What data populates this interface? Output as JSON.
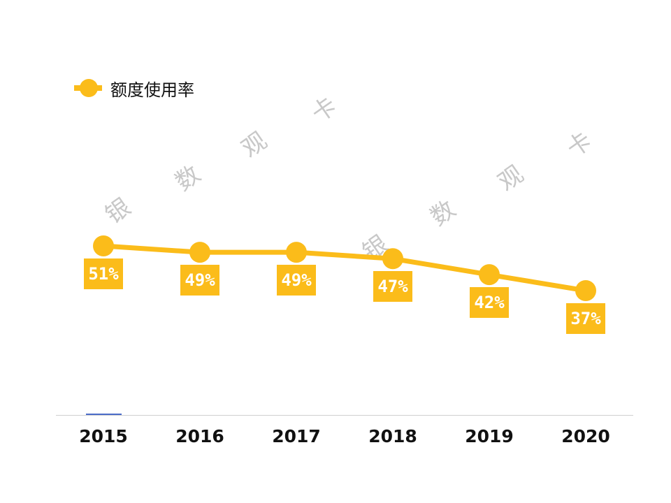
{
  "chart_data": {
    "type": "line",
    "title": "",
    "categories": [
      "2015",
      "2016",
      "2017",
      "2018",
      "2019",
      "2020"
    ],
    "series": [
      {
        "name": "额度使用率",
        "values": [
          51,
          49,
          49,
          47,
          42,
          37
        ],
        "color": "#fbbc1a"
      }
    ],
    "data_labels": [
      "51%",
      "49%",
      "49%",
      "47%",
      "42%",
      "37%"
    ],
    "xlabel": "",
    "ylabel": "",
    "y_unit": "%",
    "grid": false,
    "legend_position": "top-left"
  },
  "legend": {
    "label": "额度使用率"
  },
  "watermark": [
    "银",
    "数",
    "观",
    "卡",
    "银",
    "数",
    "观",
    "卡"
  ],
  "colors": {
    "accent": "#fbbc1a",
    "axis": "#d0d0d0"
  }
}
